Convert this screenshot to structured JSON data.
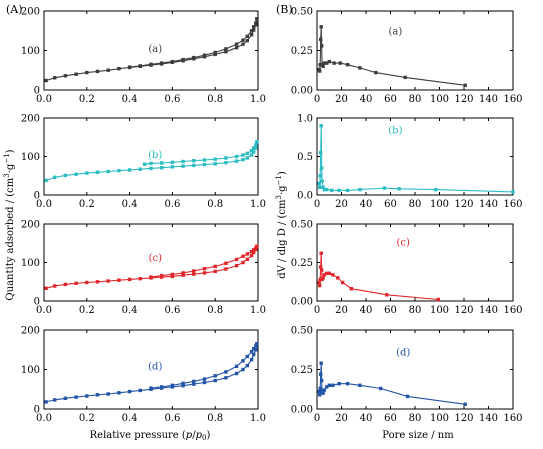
{
  "figure": {
    "tag_left": "(A)",
    "tag_right": "(B)",
    "left_xlabel_pre": "Relative pressure (",
    "left_xlabel_p": "p",
    "left_xlabel_slash": "/",
    "left_xlabel_p0": "p",
    "left_xlabel_sub": "0",
    "left_xlabel_post": ")",
    "left_ylabel_pre": "Quantity adsorbed / (cm",
    "left_ylabel_sup1": "3",
    "left_ylabel_mid": "·g",
    "left_ylabel_sup2": "−1",
    "left_ylabel_post": ")",
    "right_xlabel": "Pore size / nm",
    "right_ylabel_pre": "dV / dlg D / (cm",
    "right_ylabel_sup1": "3",
    "right_ylabel_mid": "·g",
    "right_ylabel_sup2": "−1",
    "right_ylabel_post": ")"
  },
  "chart_data": [
    {
      "type": "line",
      "panel": "A",
      "label": "(a)",
      "color": "#3c3c3c",
      "xlim": [
        0,
        1.0
      ],
      "ylim": [
        0,
        200
      ],
      "xticks": [
        "0.0",
        "0.2",
        "0.4",
        "0.6",
        "0.8",
        "1.0"
      ],
      "yticks": [
        "0",
        "100",
        "200"
      ],
      "series": [
        {
          "x": [
            0.01,
            0.05,
            0.1,
            0.15,
            0.2,
            0.25,
            0.3,
            0.35,
            0.4,
            0.45,
            0.5,
            0.55,
            0.6,
            0.65,
            0.7,
            0.75,
            0.8,
            0.85,
            0.9,
            0.93,
            0.95,
            0.97,
            0.98,
            0.99,
            0.995
          ],
          "y": [
            24,
            31,
            36,
            40,
            44,
            47,
            50,
            54,
            57,
            60,
            63,
            66,
            70,
            74,
            79,
            84,
            90,
            97,
            107,
            116,
            125,
            140,
            152,
            165,
            180
          ]
        },
        {
          "x": [
            0.995,
            0.99,
            0.98,
            0.97,
            0.95,
            0.93,
            0.9,
            0.85,
            0.8,
            0.75,
            0.7,
            0.65,
            0.6,
            0.55,
            0.5,
            0.45,
            0.4
          ],
          "y": [
            180,
            170,
            160,
            150,
            136,
            126,
            116,
            104,
            95,
            88,
            82,
            77,
            72,
            68,
            65,
            61,
            58
          ]
        }
      ]
    },
    {
      "type": "line",
      "panel": "A",
      "label": "(b)",
      "color": "#2bbcc4",
      "xlim": [
        0,
        1.0
      ],
      "ylim": [
        0,
        200
      ],
      "xticks": [
        "0.0",
        "0.2",
        "0.4",
        "0.6",
        "0.8",
        "1.0"
      ],
      "yticks": [
        "0",
        "100",
        "200"
      ],
      "series": [
        {
          "x": [
            0.01,
            0.05,
            0.1,
            0.15,
            0.2,
            0.25,
            0.3,
            0.35,
            0.4,
            0.45,
            0.5,
            0.55,
            0.6,
            0.65,
            0.7,
            0.75,
            0.8,
            0.85,
            0.9,
            0.93,
            0.95,
            0.97,
            0.98,
            0.99,
            0.995
          ],
          "y": [
            38,
            46,
            51,
            54,
            57,
            59,
            61,
            63,
            65,
            67,
            69,
            71,
            73,
            75,
            77,
            79,
            81,
            84,
            88,
            92,
            96,
            104,
            112,
            122,
            138
          ]
        },
        {
          "x": [
            0.995,
            0.99,
            0.98,
            0.97,
            0.95,
            0.93,
            0.9,
            0.85,
            0.8,
            0.75,
            0.7,
            0.65,
            0.6,
            0.55,
            0.5,
            0.47
          ],
          "y": [
            138,
            130,
            122,
            115,
            108,
            104,
            100,
            96,
            93,
            91,
            89,
            87,
            85,
            83,
            82,
            80
          ]
        }
      ]
    },
    {
      "type": "line",
      "panel": "A",
      "label": "(c)",
      "color": "#e0262a",
      "xlim": [
        0,
        1.0
      ],
      "ylim": [
        0,
        200
      ],
      "xticks": [
        "0.0",
        "0.2",
        "0.4",
        "0.6",
        "0.8",
        "1.0"
      ],
      "yticks": [
        "0",
        "100",
        "200"
      ],
      "series": [
        {
          "x": [
            0.01,
            0.05,
            0.1,
            0.15,
            0.2,
            0.25,
            0.3,
            0.35,
            0.4,
            0.45,
            0.5,
            0.55,
            0.6,
            0.65,
            0.7,
            0.75,
            0.8,
            0.85,
            0.9,
            0.93,
            0.95,
            0.97,
            0.98,
            0.99,
            0.995
          ],
          "y": [
            33,
            39,
            43,
            46,
            48,
            50,
            52,
            54,
            56,
            58,
            60,
            62,
            64,
            67,
            70,
            73,
            77,
            83,
            92,
            100,
            108,
            118,
            126,
            134,
            142
          ]
        },
        {
          "x": [
            0.995,
            0.99,
            0.98,
            0.97,
            0.95,
            0.93,
            0.9,
            0.85,
            0.8,
            0.75,
            0.7,
            0.65,
            0.6,
            0.55,
            0.5
          ],
          "y": [
            142,
            138,
            133,
            128,
            122,
            116,
            108,
            98,
            90,
            84,
            78,
            73,
            69,
            66,
            62
          ]
        }
      ]
    },
    {
      "type": "line",
      "panel": "A",
      "label": "(d)",
      "color": "#2254a8",
      "xlim": [
        0,
        1.0
      ],
      "ylim": [
        0,
        200
      ],
      "xticks": [
        "0.0",
        "0.2",
        "0.4",
        "0.6",
        "0.8",
        "1.0"
      ],
      "yticks": [
        "0",
        "100",
        "200"
      ],
      "series": [
        {
          "x": [
            0.01,
            0.05,
            0.1,
            0.15,
            0.2,
            0.25,
            0.3,
            0.35,
            0.4,
            0.45,
            0.5,
            0.55,
            0.6,
            0.65,
            0.7,
            0.75,
            0.8,
            0.85,
            0.9,
            0.93,
            0.95,
            0.97,
            0.98,
            0.99,
            0.995
          ],
          "y": [
            18,
            23,
            27,
            30,
            33,
            36,
            38,
            41,
            44,
            47,
            50,
            53,
            56,
            59,
            63,
            67,
            72,
            79,
            90,
            100,
            110,
            125,
            138,
            150,
            165
          ]
        },
        {
          "x": [
            0.995,
            0.99,
            0.98,
            0.97,
            0.95,
            0.93,
            0.9,
            0.85,
            0.8,
            0.75,
            0.7,
            0.65,
            0.6,
            0.55,
            0.5
          ],
          "y": [
            165,
            160,
            153,
            145,
            133,
            122,
            108,
            94,
            84,
            76,
            70,
            65,
            60,
            56,
            53
          ]
        }
      ]
    },
    {
      "type": "line",
      "panel": "B",
      "label": "(a)",
      "color": "#3c3c3c",
      "xlim": [
        0,
        160
      ],
      "ylim": [
        0,
        0.5
      ],
      "xticks": [
        "0",
        "20",
        "40",
        "60",
        "80",
        "100",
        "120",
        "140",
        "160"
      ],
      "yticks": [
        "0.00",
        "0.25",
        "0.50"
      ],
      "series": [
        {
          "x": [
            1.8,
            2.2,
            2.6,
            3.0,
            3.4,
            3.8,
            4.2,
            5,
            6,
            8,
            10,
            14,
            19,
            25,
            35,
            48,
            72,
            121
          ],
          "y": [
            0.13,
            0.12,
            0.16,
            0.32,
            0.4,
            0.28,
            0.16,
            0.15,
            0.17,
            0.17,
            0.18,
            0.17,
            0.17,
            0.16,
            0.14,
            0.11,
            0.08,
            0.03
          ]
        }
      ]
    },
    {
      "type": "line",
      "panel": "B",
      "label": "(b)",
      "color": "#2bbcc4",
      "xlim": [
        0,
        160
      ],
      "ylim": [
        0,
        1.0
      ],
      "xticks": [
        "0",
        "20",
        "40",
        "60",
        "80",
        "100",
        "120",
        "140",
        "160"
      ],
      "yticks": [
        "0.0",
        "0.5",
        "1.0"
      ],
      "series": [
        {
          "x": [
            1.8,
            2.2,
            2.6,
            3.0,
            3.4,
            3.8,
            4.2,
            5,
            6,
            8,
            12,
            18,
            25,
            35,
            55,
            67,
            97,
            160
          ],
          "y": [
            0.15,
            0.1,
            0.25,
            0.55,
            0.9,
            0.35,
            0.18,
            0.1,
            0.07,
            0.07,
            0.06,
            0.06,
            0.06,
            0.07,
            0.09,
            0.08,
            0.07,
            0.04
          ]
        }
      ]
    },
    {
      "type": "line",
      "panel": "B",
      "label": "(c)",
      "color": "#e0262a",
      "xlim": [
        0,
        160
      ],
      "ylim": [
        0,
        0.5
      ],
      "xticks": [
        "0",
        "20",
        "40",
        "60",
        "80",
        "100",
        "120",
        "140",
        "160"
      ],
      "yticks": [
        "0.00",
        "0.25",
        "0.50"
      ],
      "series": [
        {
          "x": [
            1.8,
            2.2,
            2.6,
            3.0,
            3.4,
            3.8,
            4.2,
            5,
            6,
            8,
            10,
            13,
            17,
            21,
            28,
            57,
            99
          ],
          "y": [
            0.12,
            0.1,
            0.14,
            0.22,
            0.31,
            0.2,
            0.14,
            0.15,
            0.17,
            0.18,
            0.18,
            0.17,
            0.15,
            0.12,
            0.08,
            0.04,
            0.01
          ]
        }
      ]
    },
    {
      "type": "line",
      "panel": "B",
      "label": "(d)",
      "color": "#2254a8",
      "xlim": [
        0,
        160
      ],
      "ylim": [
        0,
        0.5
      ],
      "xticks": [
        "0",
        "20",
        "40",
        "60",
        "80",
        "100",
        "120",
        "140",
        "160"
      ],
      "yticks": [
        "0.00",
        "0.25",
        "0.50"
      ],
      "series": [
        {
          "x": [
            1.8,
            2.2,
            2.6,
            3.0,
            3.4,
            3.8,
            4.2,
            5,
            6,
            8,
            10,
            13,
            18,
            25,
            35,
            52,
            74,
            121
          ],
          "y": [
            0.11,
            0.09,
            0.13,
            0.22,
            0.29,
            0.18,
            0.11,
            0.1,
            0.12,
            0.14,
            0.15,
            0.15,
            0.16,
            0.16,
            0.15,
            0.13,
            0.08,
            0.03
          ]
        }
      ]
    }
  ]
}
